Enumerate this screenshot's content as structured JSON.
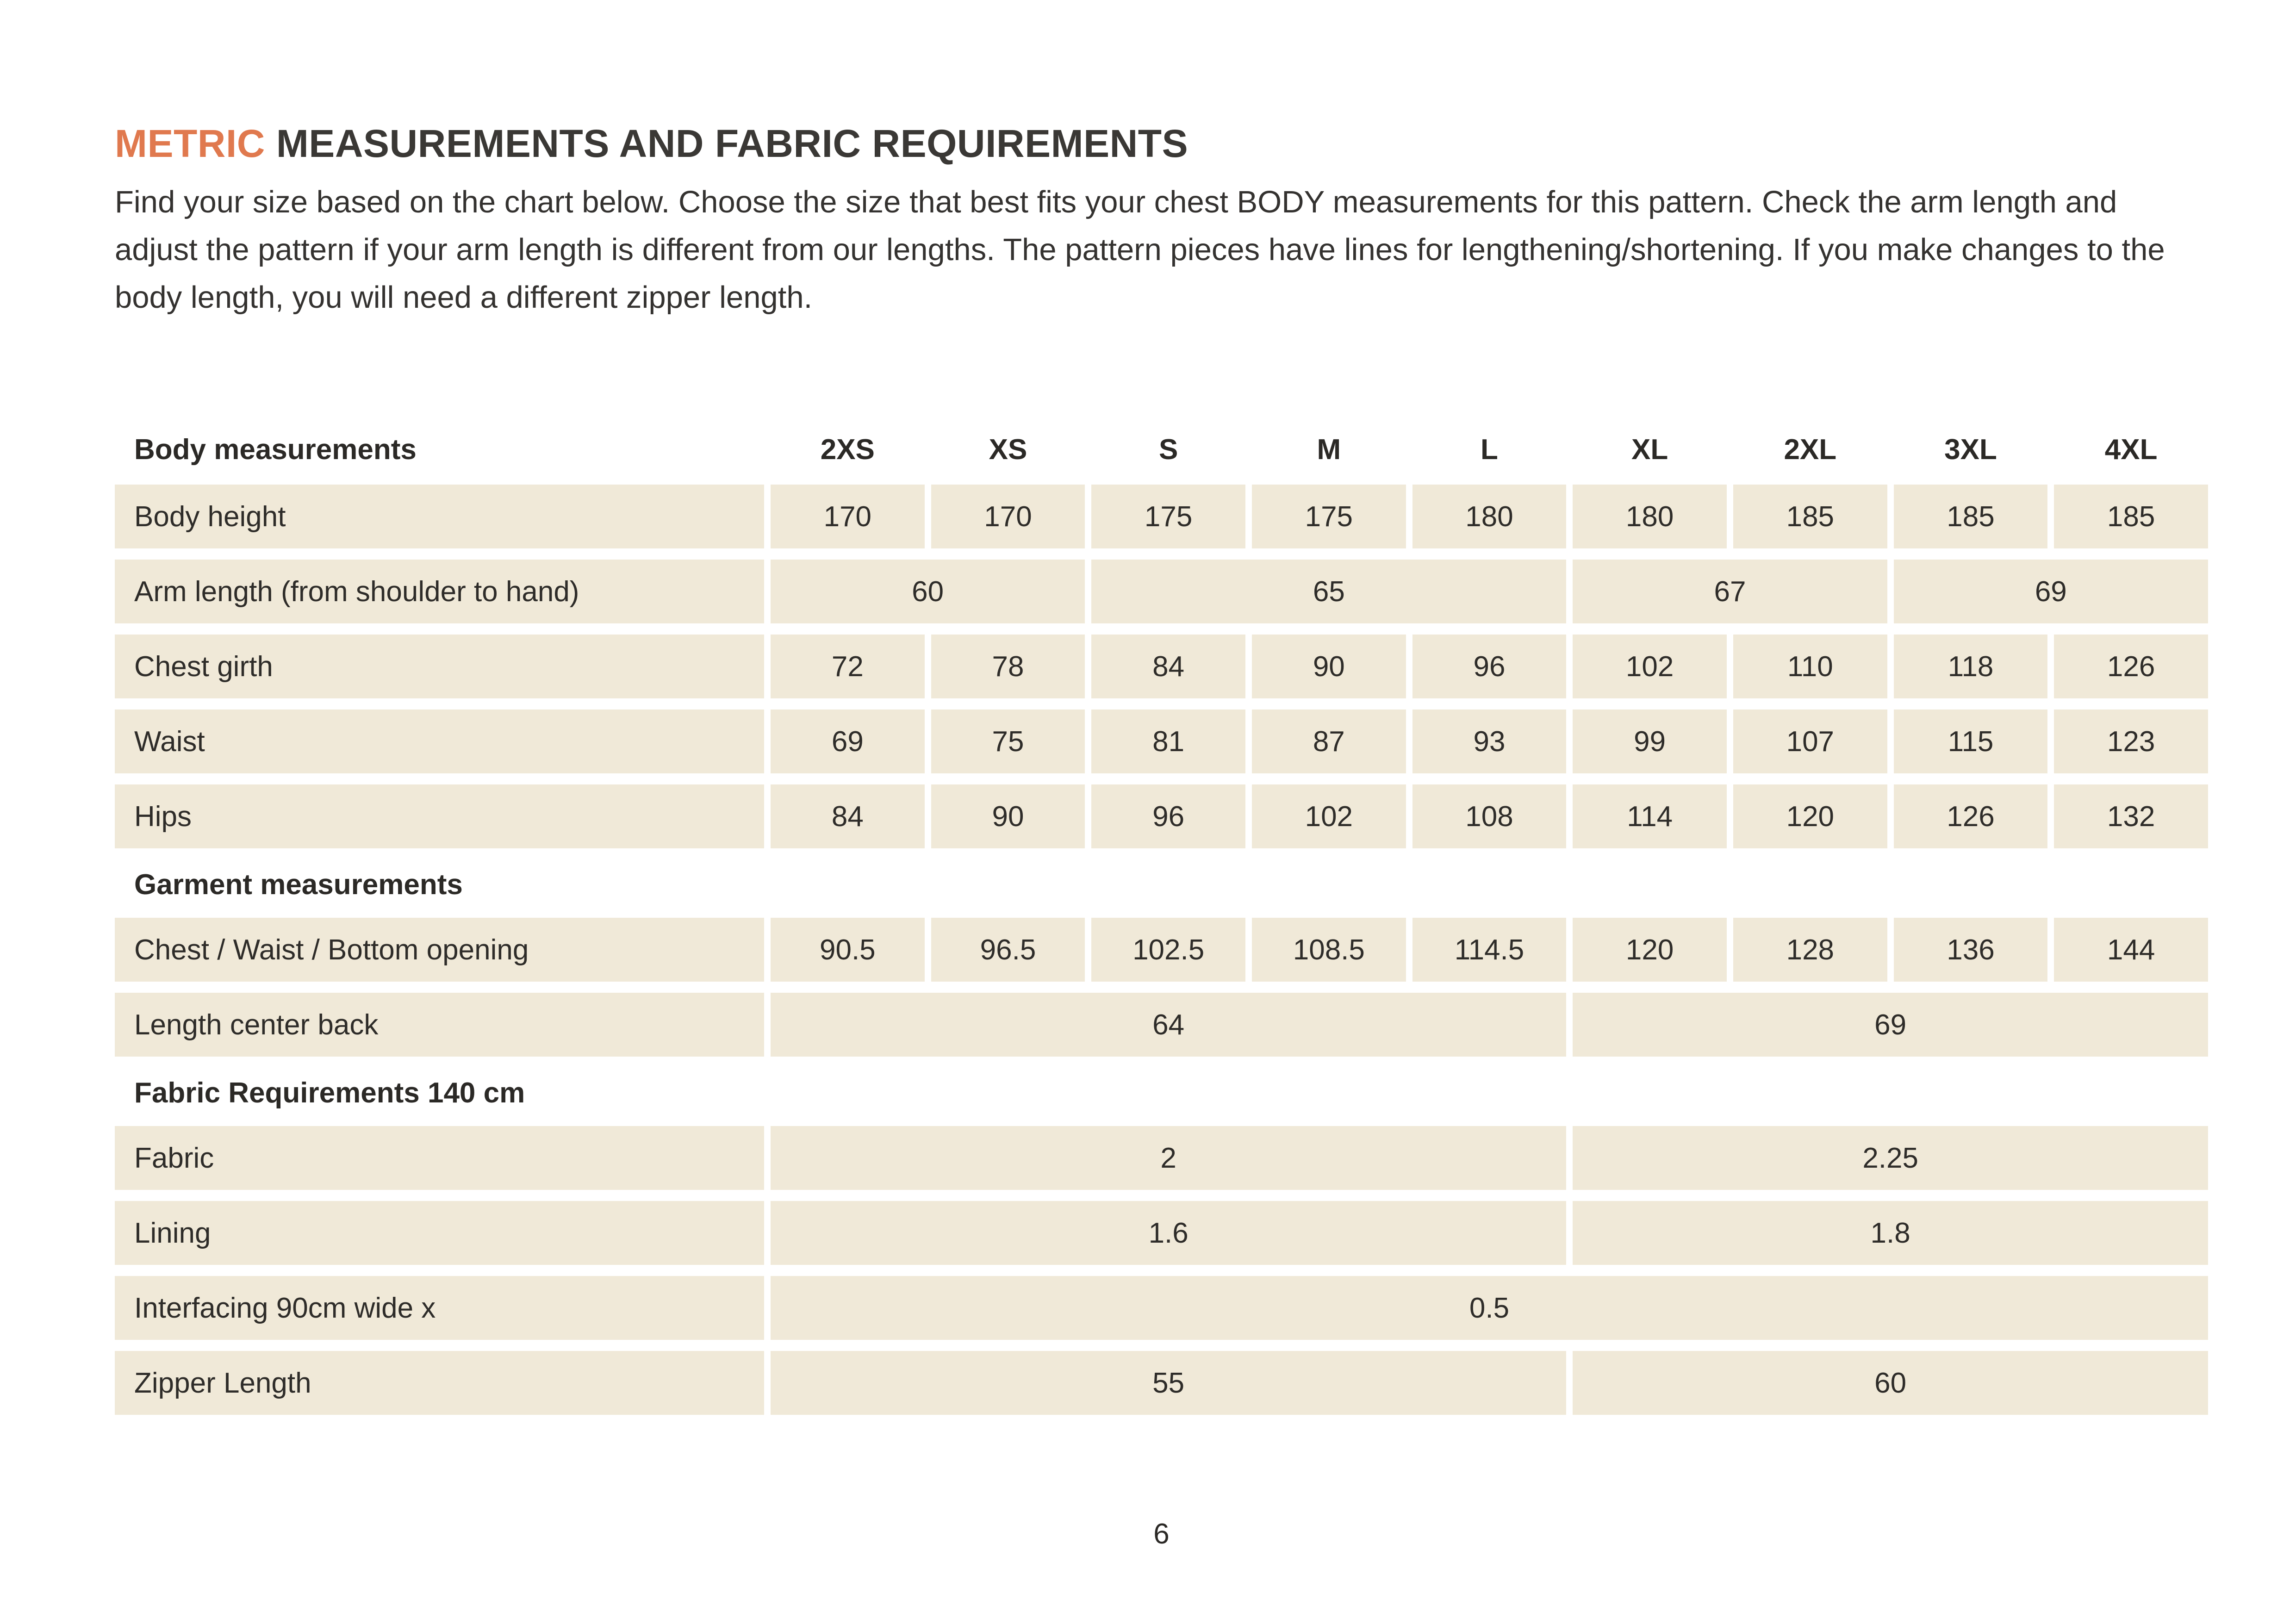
{
  "title": {
    "highlight": "METRIC",
    "rest": " MEASUREMENTS AND FABRIC REQUIREMENTS"
  },
  "intro": "Find your size based on the chart below. Choose the size that best fits your chest BODY measurements for this pattern. Check the arm length and adjust the pattern if your arm length is different from our lengths. The pattern pieces have lines for lengthening/shortening. If you make changes to the body length, you will need a different zipper length.",
  "colors": {
    "accent_orange": "#e0794e",
    "row_background": "#f0e9d8",
    "text": "#2e2c29",
    "page_background": "#ffffff"
  },
  "table": {
    "sizes": [
      "2XS",
      "XS",
      "S",
      "M",
      "L",
      "XL",
      "2XL",
      "3XL",
      "4XL"
    ],
    "rows": [
      {
        "type": "header",
        "label": "Body measurements"
      },
      {
        "type": "data",
        "label": "Body height",
        "cells": [
          {
            "v": "170",
            "s": 1
          },
          {
            "v": "170",
            "s": 1
          },
          {
            "v": "175",
            "s": 1
          },
          {
            "v": "175",
            "s": 1
          },
          {
            "v": "180",
            "s": 1
          },
          {
            "v": "180",
            "s": 1
          },
          {
            "v": "185",
            "s": 1
          },
          {
            "v": "185",
            "s": 1
          },
          {
            "v": "185",
            "s": 1
          }
        ]
      },
      {
        "type": "data",
        "label": "Arm length (from shoulder to hand)",
        "cells": [
          {
            "v": "60",
            "s": 2
          },
          {
            "v": "65",
            "s": 3
          },
          {
            "v": "67",
            "s": 2
          },
          {
            "v": "69",
            "s": 2
          }
        ]
      },
      {
        "type": "data",
        "label": "Chest girth",
        "cells": [
          {
            "v": "72",
            "s": 1
          },
          {
            "v": "78",
            "s": 1
          },
          {
            "v": "84",
            "s": 1
          },
          {
            "v": "90",
            "s": 1
          },
          {
            "v": "96",
            "s": 1
          },
          {
            "v": "102",
            "s": 1
          },
          {
            "v": "110",
            "s": 1
          },
          {
            "v": "118",
            "s": 1
          },
          {
            "v": "126",
            "s": 1
          }
        ]
      },
      {
        "type": "data",
        "label": "Waist",
        "cells": [
          {
            "v": "69",
            "s": 1
          },
          {
            "v": "75",
            "s": 1
          },
          {
            "v": "81",
            "s": 1
          },
          {
            "v": "87",
            "s": 1
          },
          {
            "v": "93",
            "s": 1
          },
          {
            "v": "99",
            "s": 1
          },
          {
            "v": "107",
            "s": 1
          },
          {
            "v": "115",
            "s": 1
          },
          {
            "v": "123",
            "s": 1
          }
        ]
      },
      {
        "type": "data",
        "label": "Hips",
        "cells": [
          {
            "v": "84",
            "s": 1
          },
          {
            "v": "90",
            "s": 1
          },
          {
            "v": "96",
            "s": 1
          },
          {
            "v": "102",
            "s": 1
          },
          {
            "v": "108",
            "s": 1
          },
          {
            "v": "114",
            "s": 1
          },
          {
            "v": "120",
            "s": 1
          },
          {
            "v": "126",
            "s": 1
          },
          {
            "v": "132",
            "s": 1
          }
        ]
      },
      {
        "type": "section",
        "label": "Garment measurements"
      },
      {
        "type": "data",
        "label": "Chest / Waist / Bottom opening",
        "cells": [
          {
            "v": "90.5",
            "s": 1
          },
          {
            "v": "96.5",
            "s": 1
          },
          {
            "v": "102.5",
            "s": 1
          },
          {
            "v": "108.5",
            "s": 1
          },
          {
            "v": "114.5",
            "s": 1
          },
          {
            "v": "120",
            "s": 1
          },
          {
            "v": "128",
            "s": 1
          },
          {
            "v": "136",
            "s": 1
          },
          {
            "v": "144",
            "s": 1
          }
        ]
      },
      {
        "type": "data",
        "label": "Length center back",
        "cells": [
          {
            "v": "64",
            "s": 5
          },
          {
            "v": "69",
            "s": 4
          }
        ]
      },
      {
        "type": "section",
        "label": "Fabric Requirements 140 cm"
      },
      {
        "type": "data",
        "label": "Fabric",
        "cells": [
          {
            "v": "2",
            "s": 5
          },
          {
            "v": "2.25",
            "s": 4
          }
        ]
      },
      {
        "type": "data",
        "label": "Lining",
        "cells": [
          {
            "v": "1.6",
            "s": 5
          },
          {
            "v": "1.8",
            "s": 4
          }
        ]
      },
      {
        "type": "data",
        "label": "Interfacing  90cm wide x",
        "cells": [
          {
            "v": "0.5",
            "s": 9
          }
        ]
      },
      {
        "type": "data",
        "label": "Zipper Length",
        "cells": [
          {
            "v": "55",
            "s": 5
          },
          {
            "v": "60",
            "s": 4
          }
        ]
      }
    ]
  },
  "page_number": "6"
}
